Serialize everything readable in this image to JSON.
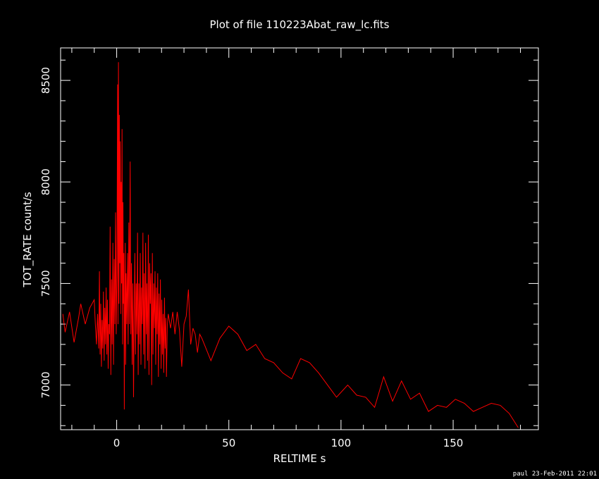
{
  "chart_data": {
    "type": "line",
    "title": "Plot of file 110223Abat_raw_lc.fits",
    "xlabel": "RELTIME  s",
    "ylabel": "TOT_RATE  count/s",
    "xlim": [
      -25,
      188
    ],
    "ylim": [
      6780,
      8660
    ],
    "x_ticks": [
      0,
      50,
      100,
      150
    ],
    "y_ticks": [
      7000,
      7500,
      8000,
      8500
    ],
    "grid": false,
    "background_color": "#000000",
    "axis_color": "#ffffff",
    "series": [
      {
        "color": "#ff0000",
        "points": [
          [
            -24,
            7350
          ],
          [
            -23,
            7260
          ],
          [
            -21,
            7360
          ],
          [
            -19,
            7210
          ],
          [
            -17,
            7330
          ],
          [
            -16,
            7400
          ],
          [
            -14,
            7300
          ],
          [
            -12,
            7380
          ],
          [
            -10,
            7420
          ],
          [
            -9.5,
            7300
          ],
          [
            -9,
            7200
          ],
          [
            -8.5,
            7350
          ],
          [
            -8,
            7180
          ],
          [
            -7.7,
            7560
          ],
          [
            -7.4,
            7150
          ],
          [
            -7.1,
            7400
          ],
          [
            -6.8,
            7090
          ],
          [
            -6.5,
            7320
          ],
          [
            -6.2,
            7180
          ],
          [
            -5.9,
            7460
          ],
          [
            -5.6,
            7120
          ],
          [
            -5.3,
            7380
          ],
          [
            -5,
            7200
          ],
          [
            -4.7,
            7480
          ],
          [
            -4.4,
            7150
          ],
          [
            -4.1,
            7420
          ],
          [
            -3.8,
            7080
          ],
          [
            -3.5,
            7300
          ],
          [
            -3.2,
            7250
          ],
          [
            -2.9,
            7780
          ],
          [
            -2.6,
            7050
          ],
          [
            -2.3,
            7520
          ],
          [
            -2,
            7200
          ],
          [
            -1.7,
            7700
          ],
          [
            -1.4,
            7100
          ],
          [
            -1.1,
            7620
          ],
          [
            -0.8,
            7300
          ],
          [
            -0.5,
            7850
          ],
          [
            -0.2,
            7250
          ],
          [
            0.1,
            7550
          ],
          [
            0.4,
            8480
          ],
          [
            0.6,
            7300
          ],
          [
            0.8,
            8590
          ],
          [
            1,
            7400
          ],
          [
            1.2,
            8330
          ],
          [
            1.4,
            7600
          ],
          [
            1.6,
            8200
          ],
          [
            1.8,
            7350
          ],
          [
            2,
            8000
          ],
          [
            2.2,
            7500
          ],
          [
            2.4,
            8260
          ],
          [
            2.6,
            7200
          ],
          [
            2.8,
            7900
          ],
          [
            3,
            7400
          ],
          [
            3.2,
            7650
          ],
          [
            3.4,
            6880
          ],
          [
            3.6,
            7350
          ],
          [
            3.8,
            7700
          ],
          [
            4,
            7100
          ],
          [
            4.2,
            7550
          ],
          [
            4.5,
            7300
          ],
          [
            4.8,
            7650
          ],
          [
            5.1,
            7200
          ],
          [
            5.4,
            7800
          ],
          [
            5.7,
            7300
          ],
          [
            6,
            8100
          ],
          [
            6.3,
            7250
          ],
          [
            6.6,
            7600
          ],
          [
            6.9,
            7100
          ],
          [
            7.2,
            7500
          ],
          [
            7.5,
            6940
          ],
          [
            7.8,
            7350
          ],
          [
            8.1,
            7650
          ],
          [
            8.4,
            7150
          ],
          [
            8.7,
            7500
          ],
          [
            9,
            7250
          ],
          [
            9.3,
            7750
          ],
          [
            9.6,
            7050
          ],
          [
            9.9,
            7500
          ],
          [
            10.2,
            7200
          ],
          [
            10.5,
            7650
          ],
          [
            10.8,
            7100
          ],
          [
            11.1,
            7480
          ],
          [
            11.4,
            7300
          ],
          [
            11.7,
            7750
          ],
          [
            12,
            7150
          ],
          [
            12.3,
            7550
          ],
          [
            12.6,
            7080
          ],
          [
            12.9,
            7700
          ],
          [
            13.2,
            7250
          ],
          [
            13.5,
            7500
          ],
          [
            13.8,
            7120
          ],
          [
            14.1,
            7740
          ],
          [
            14.4,
            7050
          ],
          [
            14.7,
            7600
          ],
          [
            15,
            7400
          ],
          [
            15.3,
            7550
          ],
          [
            15.6,
            7000
          ],
          [
            15.9,
            7650
          ],
          [
            16.2,
            7150
          ],
          [
            16.5,
            7500
          ],
          [
            16.8,
            7280
          ],
          [
            17.1,
            7560
          ],
          [
            17.4,
            7100
          ],
          [
            17.7,
            7480
          ],
          [
            18,
            7250
          ],
          [
            18.3,
            7550
          ],
          [
            18.6,
            7040
          ],
          [
            18.9,
            7450
          ],
          [
            19.2,
            7200
          ],
          [
            19.5,
            7520
          ],
          [
            19.8,
            7080
          ],
          [
            20.1,
            7420
          ],
          [
            20.4,
            7150
          ],
          [
            20.7,
            7350
          ],
          [
            21,
            7060
          ],
          [
            21.3,
            7430
          ],
          [
            21.6,
            7180
          ],
          [
            21.9,
            7330
          ],
          [
            22.2,
            7040
          ],
          [
            22.6,
            7300
          ],
          [
            23,
            7350
          ],
          [
            24,
            7280
          ],
          [
            25,
            7360
          ],
          [
            26,
            7250
          ],
          [
            27,
            7360
          ],
          [
            28,
            7270
          ],
          [
            29,
            7090
          ],
          [
            30,
            7300
          ],
          [
            31,
            7340
          ],
          [
            32,
            7470
          ],
          [
            33,
            7200
          ],
          [
            34,
            7280
          ],
          [
            35,
            7250
          ],
          [
            36,
            7160
          ],
          [
            37,
            7250
          ],
          [
            38,
            7230
          ],
          [
            42,
            7120
          ],
          [
            46,
            7230
          ],
          [
            50,
            7290
          ],
          [
            54,
            7250
          ],
          [
            58,
            7170
          ],
          [
            62,
            7200
          ],
          [
            66,
            7130
          ],
          [
            70,
            7110
          ],
          [
            74,
            7060
          ],
          [
            78,
            7030
          ],
          [
            82,
            7130
          ],
          [
            86,
            7110
          ],
          [
            90,
            7060
          ],
          [
            94,
            7000
          ],
          [
            98,
            6940
          ],
          [
            103,
            7000
          ],
          [
            107,
            6950
          ],
          [
            111,
            6940
          ],
          [
            115,
            6890
          ],
          [
            119,
            7040
          ],
          [
            123,
            6920
          ],
          [
            127,
            7020
          ],
          [
            131,
            6930
          ],
          [
            135,
            6960
          ],
          [
            139,
            6870
          ],
          [
            143,
            6900
          ],
          [
            147,
            6890
          ],
          [
            151,
            6930
          ],
          [
            155,
            6910
          ],
          [
            159,
            6870
          ],
          [
            163,
            6890
          ],
          [
            167,
            6910
          ],
          [
            171,
            6900
          ],
          [
            175,
            6860
          ],
          [
            179,
            6790
          ]
        ]
      }
    ]
  },
  "footer": {
    "text": "paul 23-Feb-2011 22:01"
  }
}
